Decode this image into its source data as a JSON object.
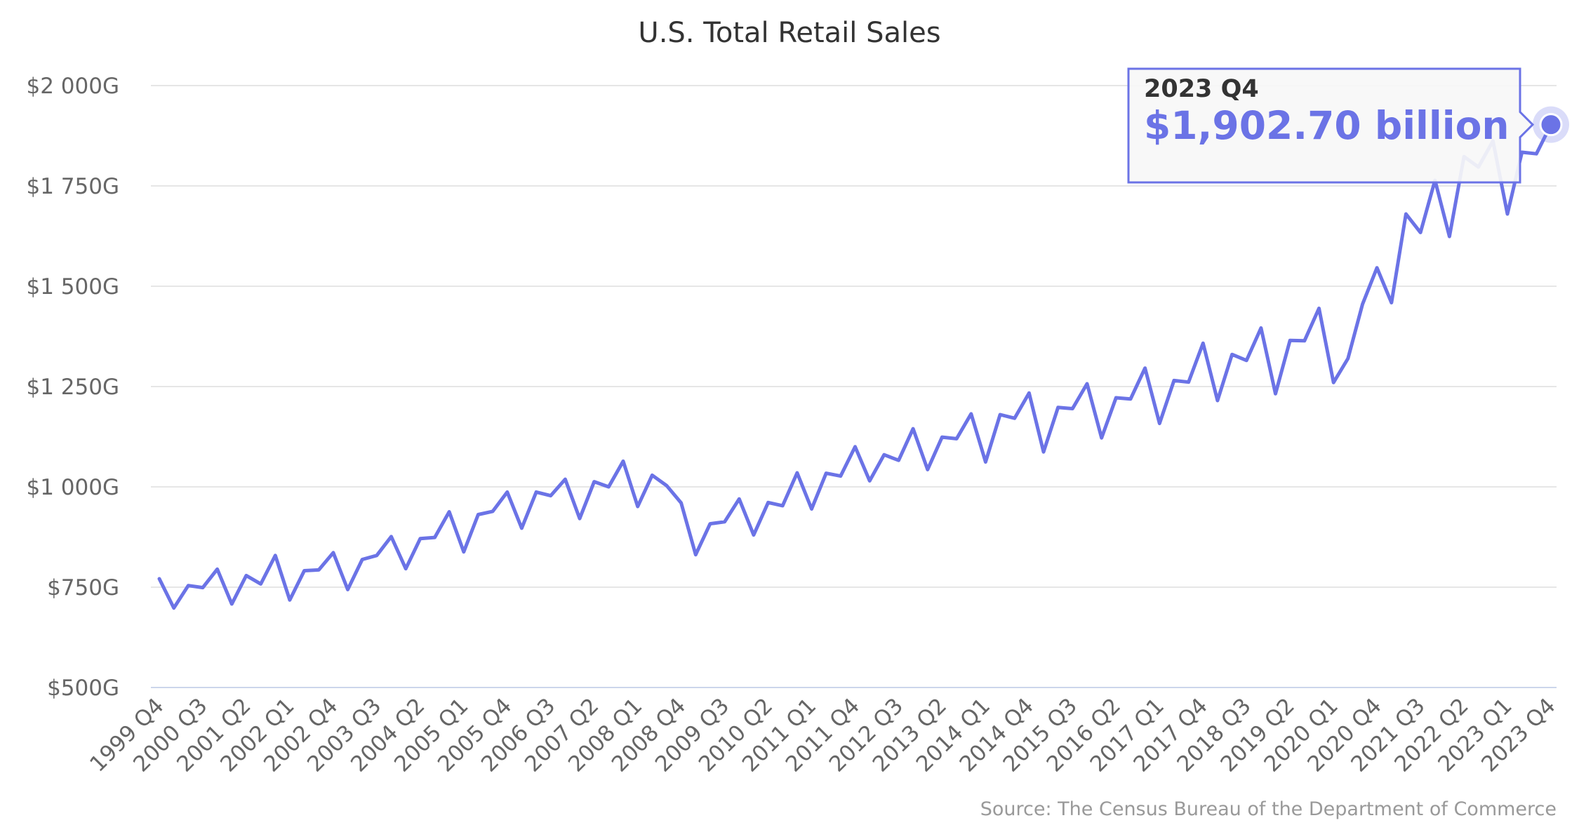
{
  "chart_data": {
    "type": "line",
    "title": "U.S. Total Retail Sales",
    "xlabel": "",
    "ylabel": "",
    "ylim": [
      500,
      2000
    ],
    "yticks": [
      500,
      750,
      1000,
      1250,
      1500,
      1750,
      2000
    ],
    "ytick_labels": [
      "$500G",
      "$750G",
      "$1 000G",
      "$1 250G",
      "$1 500G",
      "$1 750G",
      "$2 000G"
    ],
    "grid": true,
    "legend": "none",
    "x_tick_labels": [
      "1999 Q4",
      "2000 Q3",
      "2001 Q2",
      "2002 Q1",
      "2002 Q4",
      "2003 Q3",
      "2004 Q2",
      "2005 Q1",
      "2005 Q4",
      "2006 Q3",
      "2007 Q2",
      "2008 Q1",
      "2008 Q4",
      "2009 Q3",
      "2010 Q2",
      "2011 Q1",
      "2011 Q4",
      "2012 Q3",
      "2013 Q2",
      "2014 Q1",
      "2014 Q4",
      "2015 Q3",
      "2016 Q2",
      "2017 Q1",
      "2017 Q4",
      "2018 Q3",
      "2019 Q2",
      "2020 Q1",
      "2020 Q4",
      "2021 Q3",
      "2022 Q2",
      "2023 Q1",
      "2023 Q4"
    ],
    "categories": [
      "1999 Q4",
      "2000 Q1",
      "2000 Q2",
      "2000 Q3",
      "2000 Q4",
      "2001 Q1",
      "2001 Q2",
      "2001 Q3",
      "2001 Q4",
      "2002 Q1",
      "2002 Q2",
      "2002 Q3",
      "2002 Q4",
      "2003 Q1",
      "2003 Q2",
      "2003 Q3",
      "2003 Q4",
      "2004 Q1",
      "2004 Q2",
      "2004 Q3",
      "2004 Q4",
      "2005 Q1",
      "2005 Q2",
      "2005 Q3",
      "2005 Q4",
      "2006 Q1",
      "2006 Q2",
      "2006 Q3",
      "2006 Q4",
      "2007 Q1",
      "2007 Q2",
      "2007 Q3",
      "2007 Q4",
      "2008 Q1",
      "2008 Q2",
      "2008 Q3",
      "2008 Q4",
      "2009 Q1",
      "2009 Q2",
      "2009 Q3",
      "2009 Q4",
      "2010 Q1",
      "2010 Q2",
      "2010 Q3",
      "2010 Q4",
      "2011 Q1",
      "2011 Q2",
      "2011 Q3",
      "2011 Q4",
      "2012 Q1",
      "2012 Q2",
      "2012 Q3",
      "2012 Q4",
      "2013 Q1",
      "2013 Q2",
      "2013 Q3",
      "2013 Q4",
      "2014 Q1",
      "2014 Q2",
      "2014 Q3",
      "2014 Q4",
      "2015 Q1",
      "2015 Q2",
      "2015 Q3",
      "2015 Q4",
      "2016 Q1",
      "2016 Q2",
      "2016 Q3",
      "2016 Q4",
      "2017 Q1",
      "2017 Q2",
      "2017 Q3",
      "2017 Q4",
      "2018 Q1",
      "2018 Q2",
      "2018 Q3",
      "2018 Q4",
      "2019 Q1",
      "2019 Q2",
      "2019 Q3",
      "2019 Q4",
      "2020 Q1",
      "2020 Q2",
      "2020 Q3",
      "2020 Q4",
      "2021 Q1",
      "2021 Q2",
      "2021 Q3",
      "2021 Q4",
      "2022 Q1",
      "2022 Q2",
      "2022 Q3",
      "2022 Q4",
      "2023 Q1",
      "2023 Q2",
      "2023 Q3",
      "2023 Q4"
    ],
    "series": [
      {
        "color": "#6b73e6",
        "values": [
          771,
          698,
          754,
          749,
          795,
          708,
          779,
          758,
          829,
          718,
          791,
          793,
          836,
          744,
          819,
          829,
          876,
          796,
          871,
          874,
          938,
          838,
          931,
          939,
          987,
          897,
          987,
          978,
          1019,
          921,
          1013,
          1000,
          1064,
          951,
          1029,
          1003,
          960,
          831,
          908,
          913,
          970,
          880,
          961,
          953,
          1035,
          945,
          1034,
          1027,
          1100,
          1015,
          1080,
          1066,
          1145,
          1043,
          1124,
          1120,
          1182,
          1062,
          1180,
          1171,
          1234,
          1087,
          1198,
          1195,
          1257,
          1122,
          1222,
          1219,
          1296,
          1158,
          1265,
          1261,
          1358,
          1215,
          1330,
          1315,
          1396,
          1232,
          1365,
          1364,
          1445,
          1260,
          1320,
          1455,
          1546,
          1459,
          1680,
          1634,
          1764,
          1624,
          1823,
          1797,
          1862,
          1680,
          1834,
          1830,
          1902.7
        ]
      }
    ],
    "tooltip": {
      "category": "2023 Q4",
      "value_text": "$1,902.70 billion"
    },
    "credit": "Source: The Census Bureau of the Department of Commerce"
  }
}
